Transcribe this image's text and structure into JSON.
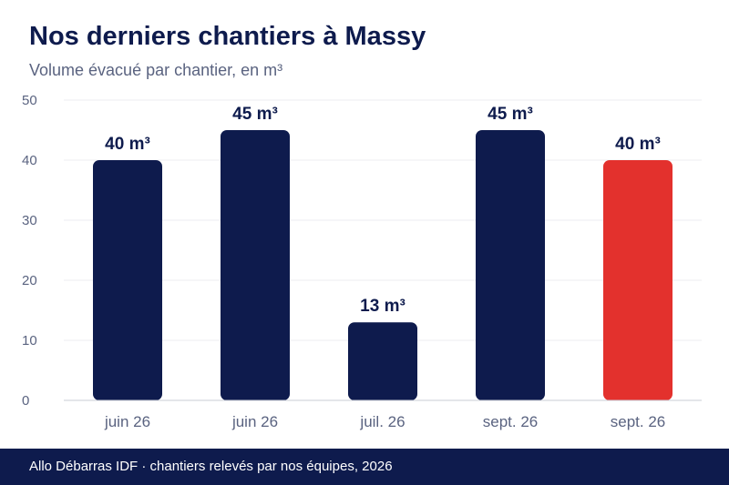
{
  "chart_data": {
    "type": "bar",
    "title": "Nos derniers chantiers à Massy",
    "subtitle": "Volume évacué par chantier, en m³",
    "categories": [
      "juin 26",
      "juin 26",
      "juil. 26",
      "sept. 26",
      "sept. 26"
    ],
    "values": [
      40,
      45,
      13,
      45,
      40
    ],
    "value_labels": [
      "40 m³",
      "45 m³",
      "13 m³",
      "45 m³",
      "40 m³"
    ],
    "ylim": [
      0,
      50
    ],
    "yticks": [
      "0",
      "10",
      "20",
      "30",
      "40",
      "50"
    ],
    "xlabel": "",
    "ylabel": "",
    "grid": true,
    "colors": {
      "bar": "#0e1b4d",
      "highlight": "#e3312d",
      "highlight_index": 4
    }
  },
  "footer": {
    "text": "Allo Débarras IDF · chantiers relevés par nos équipes, 2026"
  }
}
